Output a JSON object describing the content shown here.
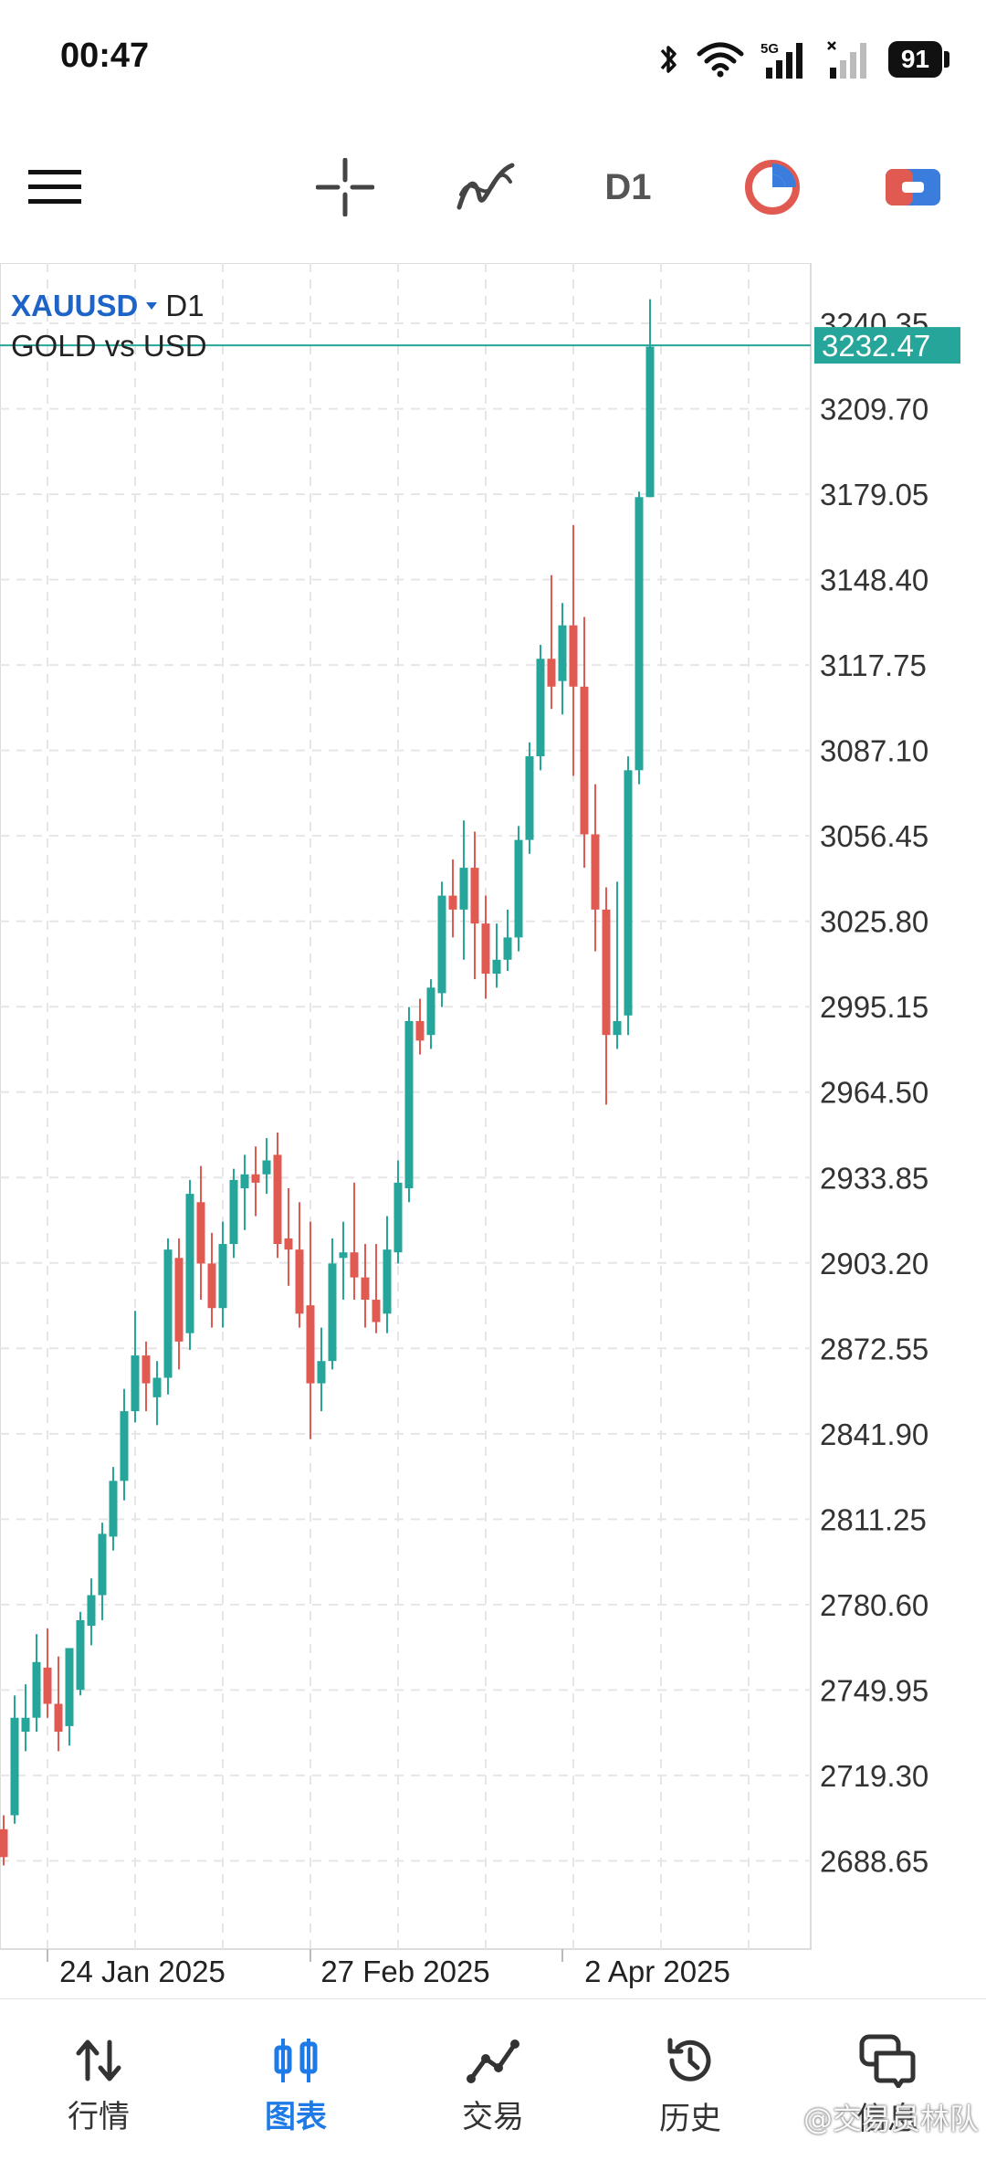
{
  "status": {
    "time": "00:47",
    "battery": "91",
    "network": "5G"
  },
  "toolbar": {
    "menu_icon": "hamburger-icon",
    "crosshair_icon": "crosshair-icon",
    "indicators_icon": "indicator-icon",
    "timeframe": "D1",
    "objects_icon": "objects-icon",
    "color_icon": "chart-color-icon"
  },
  "chart": {
    "symbol": "XAUUSD",
    "timeframe": "D1",
    "description": "GOLD vs USD",
    "current_price": "3232.47",
    "price_labels": [
      "3240.35",
      "3209.70",
      "3179.05",
      "3148.40",
      "3117.75",
      "3087.10",
      "3056.45",
      "3025.80",
      "2995.15",
      "2964.50",
      "2933.85",
      "2903.20",
      "2872.55",
      "2841.90",
      "2811.25",
      "2780.60",
      "2749.95",
      "2719.30",
      "2688.65"
    ],
    "date_labels": [
      "24 Jan 2025",
      "27 Feb 2025",
      "2 Apr 2025"
    ],
    "colors": {
      "up": "#26a69a",
      "down": "#e05a52",
      "current_line": "#26a69a"
    }
  },
  "chart_data": {
    "type": "candlestick",
    "ylim": [
      2657,
      3262
    ],
    "x": [
      "24 Jan 2025",
      "27 Feb 2025",
      "2 Apr 2025"
    ],
    "candles": [
      [
        2700,
        2705,
        2690,
        2687
      ],
      [
        2705,
        2748,
        2740,
        2702
      ],
      [
        2735,
        2752,
        2740,
        2728
      ],
      [
        2740,
        2770,
        2760,
        2735
      ],
      [
        2758,
        2772,
        2745,
        2740
      ],
      [
        2745,
        2762,
        2735,
        2728
      ],
      [
        2737,
        2750,
        2765,
        2730
      ],
      [
        2750,
        2778,
        2775,
        2748
      ],
      [
        2773,
        2790,
        2784,
        2766
      ],
      [
        2784,
        2810,
        2806,
        2775
      ],
      [
        2805,
        2830,
        2825,
        2800
      ],
      [
        2825,
        2858,
        2850,
        2818
      ],
      [
        2850,
        2886,
        2870,
        2846
      ],
      [
        2870,
        2875,
        2860,
        2850
      ],
      [
        2855,
        2868,
        2862,
        2845
      ],
      [
        2862,
        2912,
        2908,
        2856
      ],
      [
        2905,
        2912,
        2875,
        2865
      ],
      [
        2878,
        2933,
        2928,
        2872
      ],
      [
        2925,
        2938,
        2903,
        2890
      ],
      [
        2903,
        2914,
        2887,
        2880
      ],
      [
        2887,
        2918,
        2910,
        2880
      ],
      [
        2910,
        2937,
        2933,
        2905
      ],
      [
        2930,
        2942,
        2935,
        2915
      ],
      [
        2935,
        2945,
        2932,
        2920
      ],
      [
        2935,
        2948,
        2940,
        2928
      ],
      [
        2942,
        2950,
        2910,
        2905
      ],
      [
        2912,
        2930,
        2908,
        2895
      ],
      [
        2908,
        2925,
        2885,
        2880
      ],
      [
        2888,
        2918,
        2860,
        2840
      ],
      [
        2860,
        2880,
        2868,
        2850
      ],
      [
        2868,
        2912,
        2903,
        2865
      ],
      [
        2905,
        2918,
        2907,
        2890
      ],
      [
        2907,
        2932,
        2898,
        2890
      ],
      [
        2898,
        2910,
        2890,
        2880
      ],
      [
        2890,
        2910,
        2882,
        2878
      ],
      [
        2885,
        2920,
        2908,
        2878
      ],
      [
        2907,
        2940,
        2932,
        2903
      ],
      [
        2930,
        2995,
        2990,
        2925
      ],
      [
        2990,
        2998,
        2983,
        2978
      ],
      [
        2985,
        3005,
        3002,
        2980
      ],
      [
        3000,
        3040,
        3035,
        2995
      ],
      [
        3035,
        3048,
        3030,
        3020
      ],
      [
        3030,
        3062,
        3045,
        3012
      ],
      [
        3045,
        3058,
        3025,
        3005
      ],
      [
        3025,
        3035,
        3007,
        2998
      ],
      [
        3007,
        3025,
        3012,
        3002
      ],
      [
        3012,
        3030,
        3020,
        3008
      ],
      [
        3020,
        3060,
        3055,
        3015
      ],
      [
        3055,
        3090,
        3085,
        3050
      ],
      [
        3085,
        3125,
        3120,
        3080
      ],
      [
        3120,
        3150,
        3110,
        3102
      ],
      [
        3112,
        3140,
        3132,
        3100
      ],
      [
        3132,
        3168,
        3110,
        3078
      ],
      [
        3110,
        3135,
        3057,
        3045
      ],
      [
        3057,
        3075,
        3030,
        3015
      ],
      [
        3030,
        3038,
        2985,
        2960
      ],
      [
        2985,
        3040,
        2990,
        2980
      ],
      [
        2992,
        3085,
        3080,
        2985
      ],
      [
        3080,
        3180,
        3178,
        3075
      ],
      [
        3178,
        3249,
        3232,
        3178
      ]
    ]
  },
  "nav": {
    "items": [
      {
        "id": "quotes",
        "label": "行情",
        "icon": "quotes-icon"
      },
      {
        "id": "chart",
        "label": "图表",
        "icon": "chart-icon",
        "active": true
      },
      {
        "id": "trade",
        "label": "交易",
        "icon": "trade-icon"
      },
      {
        "id": "history",
        "label": "历史",
        "icon": "history-icon"
      },
      {
        "id": "messages",
        "label": "信息",
        "icon": "messages-icon"
      }
    ]
  },
  "watermark": "@交易员林队"
}
